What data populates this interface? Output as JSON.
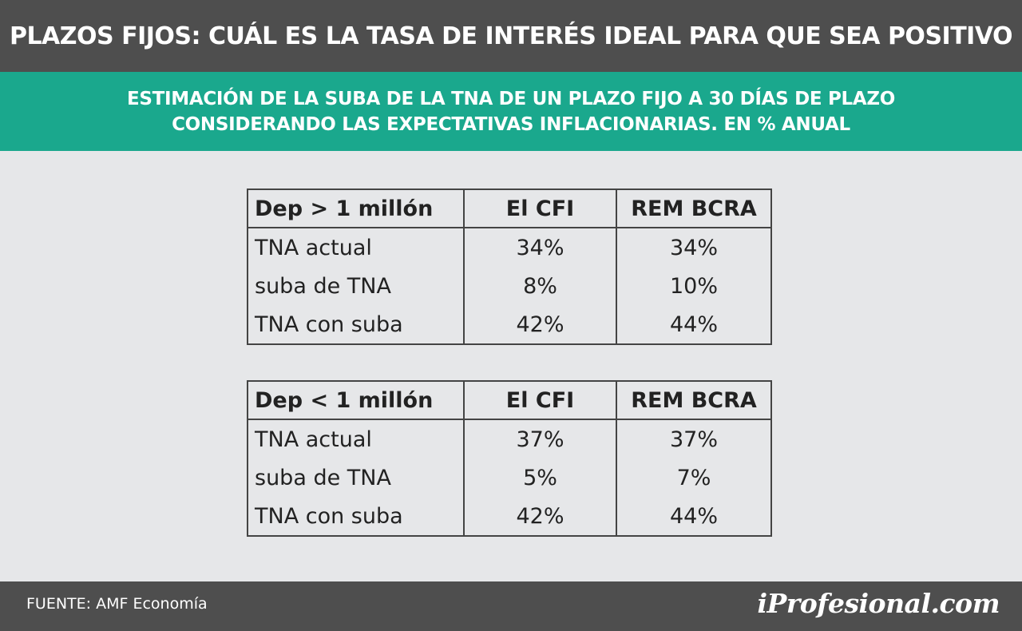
{
  "header": {
    "title": "PLAZOS FIJOS: CUÁL ES LA TASA DE INTERÉS IDEAL PARA QUE SEA POSITIVO"
  },
  "subheader": {
    "line1": "ESTIMACIÓN DE LA SUBA DE LA TNA DE UN PLAZO FIJO A 30 DÍAS DE PLAZO",
    "line2": "CONSIDERANDO LAS EXPECTATIVAS INFLACIONARIAS. EN % ANUAL"
  },
  "chart_data": [
    {
      "type": "table",
      "columns": [
        "Dep > 1 millón",
        "El CFI",
        "REM BCRA"
      ],
      "rows": [
        [
          "TNA actual",
          "34%",
          "34%"
        ],
        [
          "suba de TNA",
          "8%",
          "10%"
        ],
        [
          "TNA con suba",
          "42%",
          "44%"
        ]
      ]
    },
    {
      "type": "table",
      "columns": [
        "Dep < 1 millón",
        "El CFI",
        "REM BCRA"
      ],
      "rows": [
        [
          "TNA actual",
          "37%",
          "37%"
        ],
        [
          "suba de TNA",
          "5%",
          "7%"
        ],
        [
          "TNA con suba",
          "42%",
          "44%"
        ]
      ]
    }
  ],
  "footer": {
    "source": "FUENTE: AMF Economía",
    "logo": "iProfesional.com"
  }
}
